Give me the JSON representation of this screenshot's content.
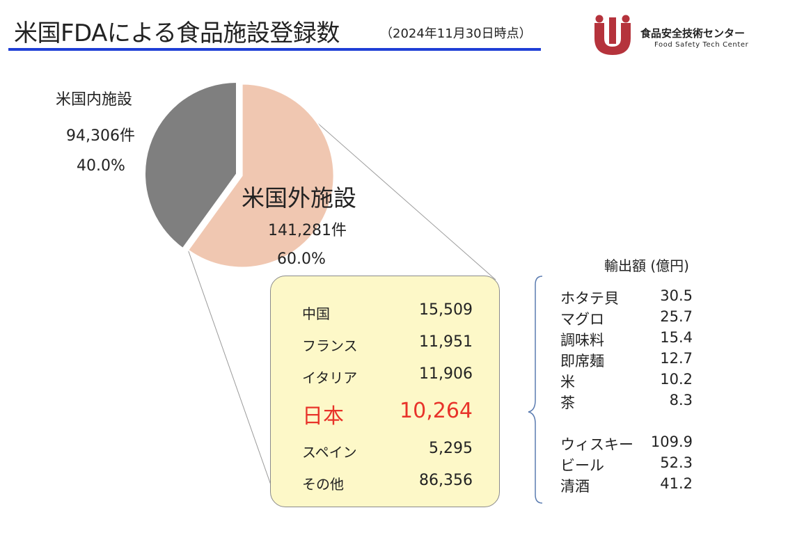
{
  "header": {
    "title": "米国FDAによる食品施設登録数",
    "subtitle": "（2024年11月30日時点）"
  },
  "logo": {
    "name": "食品安全技術センター",
    "sub": "Food Safety Tech Center"
  },
  "colors": {
    "title_rule": "#1f3fd6",
    "domestic_slice": "#7f7f7f",
    "foreign_slice": "#f0c7b1",
    "box_fill": "#fdf8c8",
    "highlight": "#e8332a",
    "logo_red": "#b5333c"
  },
  "chart_data": {
    "type": "pie",
    "slices": [
      {
        "label": "米国内施設",
        "count_text": "94,306件",
        "value": 94306,
        "percent_text": "40.0%",
        "percent": 40.0,
        "color": "#7f7f7f"
      },
      {
        "label": "米国外施設",
        "count_text": "141,281件",
        "value": 141281,
        "percent_text": "60.0%",
        "percent": 60.0,
        "color": "#f0c7b1"
      }
    ],
    "breakdown": {
      "of": "米国外施設",
      "rows": [
        {
          "country": "中国",
          "count": "15,509"
        },
        {
          "country": "フランス",
          "count": "11,951"
        },
        {
          "country": "イタリア",
          "count": "11,906"
        },
        {
          "country": "日本",
          "count": "10,264",
          "highlight": true
        },
        {
          "country": "スペイン",
          "count": "5,295"
        },
        {
          "country": "その他",
          "count": "86,356"
        }
      ]
    },
    "exports": {
      "title": "輸出額 (億円)",
      "groups": [
        [
          {
            "item": "ホタテ貝",
            "value": "30.5"
          },
          {
            "item": "マグロ",
            "value": "25.7"
          },
          {
            "item": "調味料",
            "value": "15.4"
          },
          {
            "item": "即席麺",
            "value": "12.7"
          },
          {
            "item": "米",
            "value": "10.2"
          },
          {
            "item": "茶",
            "value": "8.3"
          }
        ],
        [
          {
            "item": "ウィスキー",
            "value": "109.9"
          },
          {
            "item": "ビール",
            "value": "52.3"
          },
          {
            "item": "清酒",
            "value": "41.2"
          }
        ]
      ]
    }
  }
}
